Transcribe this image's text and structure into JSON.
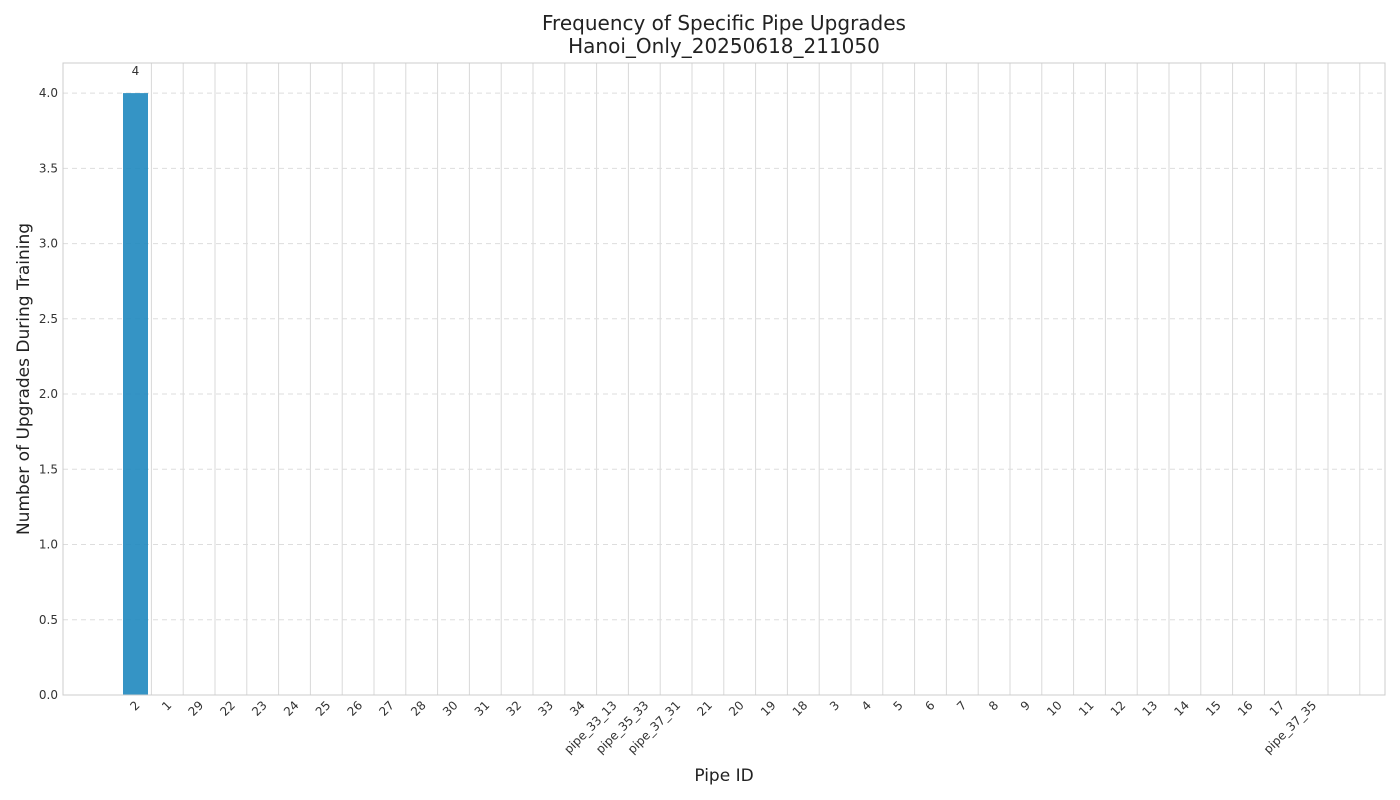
{
  "chart_data": {
    "type": "bar",
    "title": "Frequency of Specific Pipe Upgrades",
    "subtitle": "Hanoi_Only_20250618_211050",
    "xlabel": "Pipe ID",
    "ylabel": "Number of Upgrades During Training",
    "ylim": [
      0,
      4.2
    ],
    "yticks": [
      "0.0",
      "0.5",
      "1.0",
      "1.5",
      "2.0",
      "2.5",
      "3.0",
      "3.5",
      "4.0"
    ],
    "grid": true,
    "bar_color": "#1f88bf",
    "categories": [
      "2",
      "1",
      "29",
      "22",
      "23",
      "24",
      "25",
      "26",
      "27",
      "28",
      "30",
      "31",
      "32",
      "33",
      "34",
      "pipe_33_13",
      "pipe_35_33",
      "pipe_37_31",
      "21",
      "20",
      "19",
      "18",
      "3",
      "4",
      "5",
      "6",
      "7",
      "8",
      "9",
      "10",
      "11",
      "12",
      "13",
      "14",
      "15",
      "16",
      "17",
      "pipe_37_35"
    ],
    "values": [
      4,
      0,
      0,
      0,
      0,
      0,
      0,
      0,
      0,
      0,
      0,
      0,
      0,
      0,
      0,
      0,
      0,
      0,
      0,
      0,
      0,
      0,
      0,
      0,
      0,
      0,
      0,
      0,
      0,
      0,
      0,
      0,
      0,
      0,
      0,
      0,
      0,
      0
    ],
    "data_labels": [
      "4"
    ]
  }
}
